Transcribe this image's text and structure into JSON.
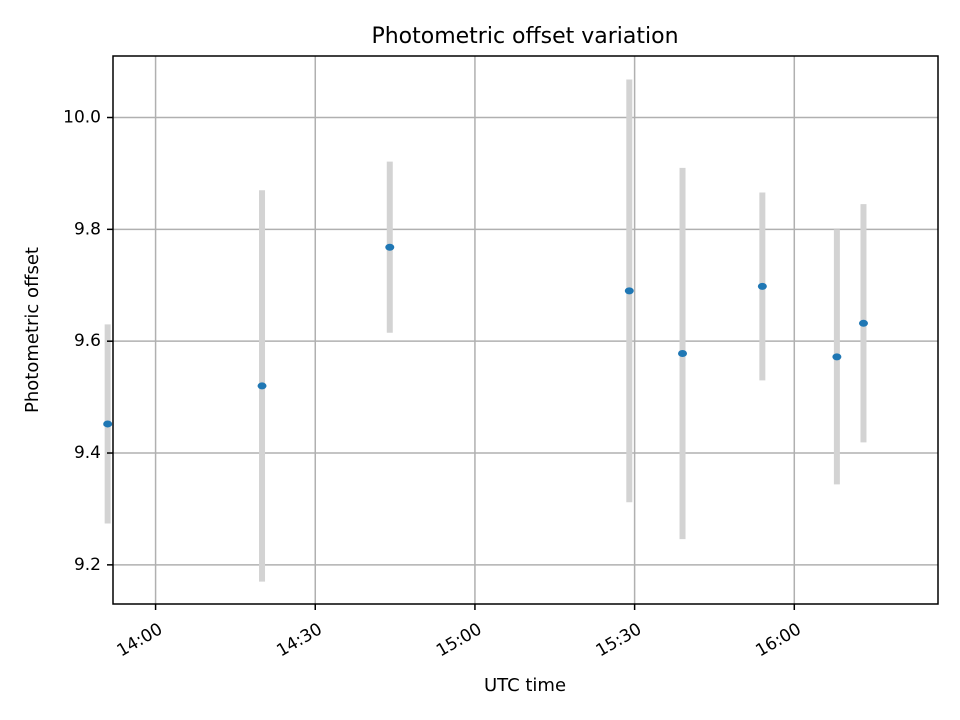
{
  "chart_data": {
    "type": "scatter",
    "title": "Photometric offset variation",
    "xlabel": "UTC time",
    "ylabel": "Photometric offset",
    "x_ticks": [
      "14:00",
      "14:30",
      "15:00",
      "15:30",
      "16:00"
    ],
    "y_ticks": [
      9.2,
      9.4,
      9.6,
      9.8,
      10.0
    ],
    "xlim": [
      "13:52",
      "16:27"
    ],
    "ylim": [
      9.13,
      10.11
    ],
    "grid": true,
    "marker_color": "#1f77b4",
    "errorbar_color": "#d3d3d3",
    "points": [
      {
        "time": "13:51",
        "y": 9.452,
        "err": 0.178
      },
      {
        "time": "14:20",
        "y": 9.52,
        "err": 0.35
      },
      {
        "time": "14:44",
        "y": 9.768,
        "err": 0.153
      },
      {
        "time": "15:29",
        "y": 9.69,
        "err": 0.378
      },
      {
        "time": "15:39",
        "y": 9.578,
        "err": 0.332
      },
      {
        "time": "15:54",
        "y": 9.698,
        "err": 0.168
      },
      {
        "time": "16:08",
        "y": 9.572,
        "err": 0.228
      },
      {
        "time": "16:13",
        "y": 9.632,
        "err": 0.213
      }
    ]
  }
}
